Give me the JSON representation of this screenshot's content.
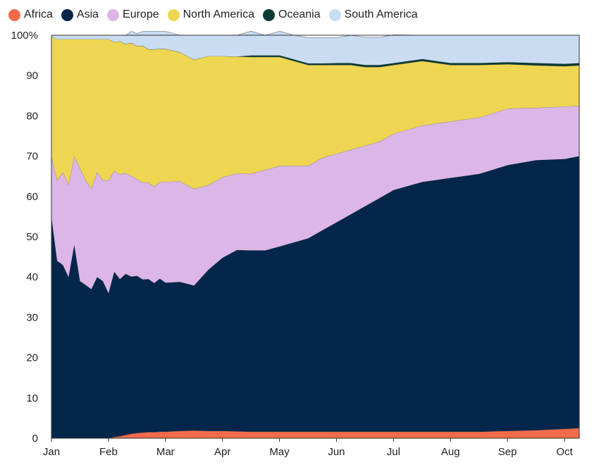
{
  "chart_data": {
    "type": "area",
    "stacked": true,
    "normalized": true,
    "title": "",
    "xlabel": "",
    "ylabel": "",
    "ylim": [
      0,
      100
    ],
    "yticks": [
      0,
      10,
      20,
      30,
      40,
      50,
      60,
      70,
      80,
      90,
      100
    ],
    "ytick_labels": [
      "0",
      "10",
      "20",
      "30",
      "40",
      "50",
      "60",
      "70",
      "80",
      "90",
      "100%"
    ],
    "x_month_labels": [
      "Jan",
      "Feb",
      "Mar",
      "Apr",
      "May",
      "Jun",
      "Jul",
      "Aug",
      "Sep",
      "Oct"
    ],
    "x_month_positions": [
      0,
      1,
      2,
      3,
      4,
      5,
      6,
      7,
      8,
      9
    ],
    "grid": "horizontal",
    "legend_position": "top-left",
    "x": [
      0,
      0.1,
      0.2,
      0.3,
      0.4,
      0.5,
      0.6,
      0.7,
      0.8,
      0.9,
      1.0,
      1.1,
      1.2,
      1.3,
      1.4,
      1.5,
      1.6,
      1.7,
      1.8,
      1.9,
      2.0,
      2.25,
      2.5,
      2.75,
      3.0,
      3.25,
      3.5,
      3.75,
      4.0,
      4.25,
      4.5,
      4.75,
      5.0,
      5.25,
      5.5,
      5.75,
      6.0,
      6.5,
      7.0,
      7.5,
      8.0,
      8.5,
      9.0,
      9.25
    ],
    "series": [
      {
        "name": "Africa",
        "color": "#f26b4a",
        "values": [
          0,
          0,
          0,
          0,
          0,
          0,
          0,
          0,
          0,
          0,
          0,
          0.3,
          0.5,
          0.8,
          1.1,
          1.3,
          1.4,
          1.5,
          1.5,
          1.6,
          1.6,
          1.8,
          1.9,
          1.8,
          1.8,
          1.7,
          1.6,
          1.6,
          1.6,
          1.6,
          1.6,
          1.6,
          1.6,
          1.6,
          1.6,
          1.6,
          1.6,
          1.6,
          1.6,
          1.6,
          1.8,
          2.0,
          2.3,
          2.5
        ]
      },
      {
        "name": "Asia",
        "color": "#04264a",
        "values": [
          55,
          44,
          43,
          40,
          48,
          39,
          38,
          37,
          40,
          39,
          36,
          41,
          39,
          40,
          39,
          39,
          38,
          38,
          37,
          38,
          37,
          37,
          36,
          40,
          43,
          45,
          45,
          45,
          46,
          47,
          48,
          50,
          52,
          54,
          56,
          58,
          60,
          62,
          63,
          64,
          66,
          67,
          67,
          67.5
        ]
      },
      {
        "name": "Europe",
        "color": "#dbb6e6",
        "values": [
          15,
          20,
          23,
          23,
          22,
          28,
          26,
          25,
          26,
          25,
          28,
          25,
          26,
          25,
          25,
          24,
          24,
          24,
          24,
          24,
          25,
          25,
          24,
          21,
          20,
          19,
          19,
          20,
          20,
          19,
          18,
          18,
          17,
          16,
          15,
          14,
          14,
          14,
          14,
          14,
          14,
          13,
          13,
          12.5
        ]
      },
      {
        "name": "North America",
        "color": "#eed652",
        "values": [
          29.7,
          35,
          33,
          36,
          29,
          32,
          35,
          37,
          33,
          35,
          35,
          32,
          33,
          32,
          33,
          33,
          34,
          33,
          34,
          33,
          33,
          32,
          32,
          32,
          30,
          29,
          29,
          28,
          27,
          26,
          25,
          23,
          22,
          21,
          19.5,
          18.5,
          17,
          16,
          14,
          13,
          11,
          10.5,
          10,
          10
        ]
      },
      {
        "name": "Oceania",
        "color": "#0b3b35",
        "values": [
          0,
          0,
          0,
          0,
          0,
          0,
          0,
          0,
          0,
          0,
          0,
          0,
          0,
          0,
          0,
          0,
          0,
          0,
          0,
          0,
          0,
          0,
          0,
          0,
          0,
          0,
          0.4,
          0.4,
          0.4,
          0.4,
          0.4,
          0.4,
          0.5,
          0.5,
          0.5,
          0.5,
          0.5,
          0.5,
          0.5,
          0.5,
          0.5,
          0.6,
          0.6,
          0.6
        ]
      },
      {
        "name": "South America",
        "color": "#c9dcf2",
        "values": [
          0.3,
          1,
          1,
          1,
          1,
          1,
          1,
          1,
          1,
          1,
          1,
          1.7,
          1.5,
          2.2,
          2.9,
          3.1,
          3.6,
          4.5,
          4.5,
          4.4,
          4.4,
          4.2,
          6.1,
          5.2,
          5.2,
          5.3,
          6.0,
          5.0,
          6.0,
          6.0,
          6.4,
          6.4,
          6.3,
          6.9,
          6.9,
          6.9,
          7.0,
          5.9,
          6.9,
          6.9,
          6.7,
          6.9,
          7.1,
          6.9
        ]
      }
    ]
  }
}
